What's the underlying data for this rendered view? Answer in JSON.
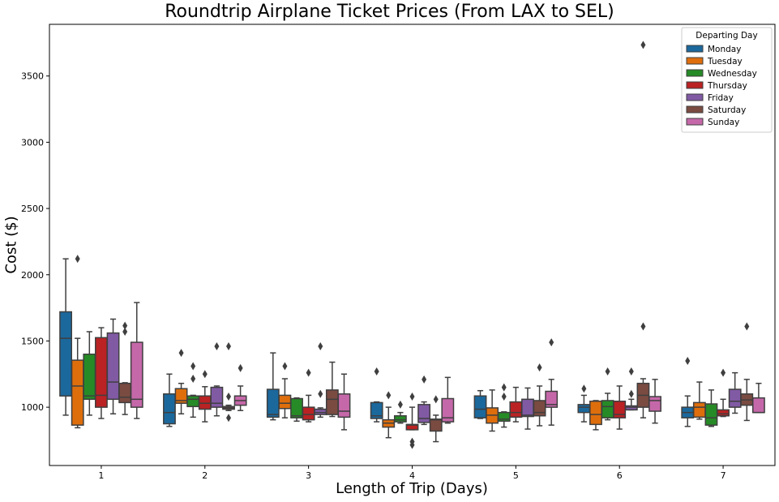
{
  "chart_data": {
    "type": "box",
    "title": "Roundtrip Airplane Ticket Prices (From LAX to SEL)",
    "xlabel": "Length of Trip (Days)",
    "ylabel": "Cost ($)",
    "categories": [
      "1",
      "2",
      "3",
      "4",
      "5",
      "6",
      "7"
    ],
    "ylim": [
      560,
      3890
    ],
    "yticks": [
      1000,
      1500,
      2000,
      2500,
      3000,
      3500
    ],
    "grid": false,
    "legend": {
      "title": "Departing Day",
      "position": "top-right"
    },
    "series": [
      {
        "name": "Monday",
        "color": "#1f77b4",
        "boxes": [
          {
            "whislo": 940,
            "q1": 1085,
            "med": 1520,
            "q3": 1720,
            "whishi": 2120,
            "fliers": []
          },
          {
            "whislo": 855,
            "q1": 875,
            "med": 960,
            "q3": 1100,
            "whishi": 1250,
            "fliers": []
          },
          {
            "whislo": 905,
            "q1": 925,
            "med": 945,
            "q3": 1135,
            "whishi": 1410,
            "fliers": []
          },
          {
            "whislo": 890,
            "q1": 915,
            "med": 935,
            "q3": 1035,
            "whishi": 1040,
            "fliers": [
              1270
            ]
          },
          {
            "whislo": 915,
            "q1": 920,
            "med": 985,
            "q3": 1085,
            "whishi": 1125,
            "fliers": []
          },
          {
            "whislo": 890,
            "q1": 960,
            "med": 1000,
            "q3": 1020,
            "whishi": 1090,
            "fliers": [
              1140
            ]
          },
          {
            "whislo": 855,
            "q1": 920,
            "med": 960,
            "q3": 1000,
            "whishi": 1085,
            "fliers": [
              1350
            ]
          }
        ]
      },
      {
        "name": "Tuesday",
        "color": "#ff7f0e",
        "boxes": [
          {
            "whislo": 845,
            "q1": 865,
            "med": 1160,
            "q3": 1355,
            "whishi": 1520,
            "fliers": [
              2120
            ]
          },
          {
            "whislo": 950,
            "q1": 1030,
            "med": 1050,
            "q3": 1140,
            "whishi": 1180,
            "fliers": [
              1410
            ]
          },
          {
            "whislo": 920,
            "q1": 990,
            "med": 1030,
            "q3": 1090,
            "whishi": 1215,
            "fliers": [
              1310
            ]
          },
          {
            "whislo": 770,
            "q1": 850,
            "med": 880,
            "q3": 905,
            "whishi": 1000,
            "fliers": [
              1090
            ]
          },
          {
            "whislo": 820,
            "q1": 880,
            "med": 940,
            "q3": 995,
            "whishi": 1130,
            "fliers": []
          },
          {
            "whislo": 830,
            "q1": 870,
            "med": 945,
            "q3": 1045,
            "whishi": 1050,
            "fliers": []
          },
          {
            "whislo": 910,
            "q1": 925,
            "med": 1000,
            "q3": 1035,
            "whishi": 1190,
            "fliers": []
          }
        ]
      },
      {
        "name": "Wednesday",
        "color": "#2ca02c",
        "boxes": [
          {
            "whislo": 940,
            "q1": 1060,
            "med": 1085,
            "q3": 1400,
            "whishi": 1570,
            "fliers": []
          },
          {
            "whislo": 925,
            "q1": 1005,
            "med": 1060,
            "q3": 1085,
            "whishi": 1090,
            "fliers": [
              1215,
              1310
            ]
          },
          {
            "whislo": 895,
            "q1": 920,
            "med": 935,
            "q3": 1065,
            "whishi": 1070,
            "fliers": []
          },
          {
            "whislo": 880,
            "q1": 890,
            "med": 905,
            "q3": 935,
            "whishi": 960,
            "fliers": [
              1020
            ]
          },
          {
            "whislo": 850,
            "q1": 895,
            "med": 910,
            "q3": 960,
            "whishi": 965,
            "fliers": [
              1080,
              1150
            ]
          },
          {
            "whislo": 905,
            "q1": 920,
            "med": 1005,
            "q3": 1050,
            "whishi": 1105,
            "fliers": [
              1270
            ]
          },
          {
            "whislo": 855,
            "q1": 865,
            "med": 920,
            "q3": 1025,
            "whishi": 1130,
            "fliers": []
          }
        ]
      },
      {
        "name": "Thursday",
        "color": "#d62728",
        "boxes": [
          {
            "whislo": 915,
            "q1": 1000,
            "med": 1090,
            "q3": 1525,
            "whishi": 1600,
            "fliers": []
          },
          {
            "whislo": 890,
            "q1": 985,
            "med": 1030,
            "q3": 1085,
            "whishi": 1155,
            "fliers": [
              1250
            ]
          },
          {
            "whislo": 890,
            "q1": 905,
            "med": 945,
            "q3": 1000,
            "whishi": 1090,
            "fliers": [
              1260
            ]
          },
          {
            "whislo": 830,
            "q1": 830,
            "med": 865,
            "q3": 870,
            "whishi": 1000,
            "fliers": [
              740,
              715,
              1080
            ]
          },
          {
            "whislo": 890,
            "q1": 925,
            "med": 960,
            "q3": 1040,
            "whishi": 1150,
            "fliers": []
          },
          {
            "whislo": 835,
            "q1": 920,
            "med": 945,
            "q3": 1045,
            "whishi": 1160,
            "fliers": []
          },
          {
            "whislo": 930,
            "q1": 935,
            "med": 950,
            "q3": 980,
            "whishi": 1060,
            "fliers": [
              1260
            ]
          }
        ]
      },
      {
        "name": "Friday",
        "color": "#9467bd",
        "boxes": [
          {
            "whislo": 950,
            "q1": 1060,
            "med": 1190,
            "q3": 1560,
            "whishi": 1665,
            "fliers": []
          },
          {
            "whislo": 935,
            "q1": 1000,
            "med": 1030,
            "q3": 1150,
            "whishi": 1160,
            "fliers": [
              1460
            ]
          },
          {
            "whislo": 925,
            "q1": 945,
            "med": 960,
            "q3": 985,
            "whishi": 995,
            "fliers": [
              1100,
              1460
            ]
          },
          {
            "whislo": 870,
            "q1": 885,
            "med": 915,
            "q3": 1020,
            "whishi": 1040,
            "fliers": [
              1210
            ]
          },
          {
            "whislo": 835,
            "q1": 930,
            "med": 940,
            "q3": 1060,
            "whishi": 1145,
            "fliers": []
          },
          {
            "whislo": 980,
            "q1": 980,
            "med": 1000,
            "q3": 1010,
            "whishi": 1060,
            "fliers": [
              1100,
              1270
            ]
          },
          {
            "whislo": 955,
            "q1": 1000,
            "med": 1045,
            "q3": 1135,
            "whishi": 1260,
            "fliers": []
          }
        ]
      },
      {
        "name": "Saturday",
        "color": "#8c564b",
        "boxes": [
          {
            "whislo": 945,
            "q1": 1035,
            "med": 1075,
            "q3": 1180,
            "whishi": 1185,
            "fliers": [
              1570,
              1615
            ]
          },
          {
            "whislo": 975,
            "q1": 985,
            "med": 995,
            "q3": 1005,
            "whishi": 1015,
            "fliers": [
              920,
              1080,
              1460
            ]
          },
          {
            "whislo": 930,
            "q1": 945,
            "med": 1060,
            "q3": 1130,
            "whishi": 1340,
            "fliers": []
          },
          {
            "whislo": 740,
            "q1": 820,
            "med": 905,
            "q3": 910,
            "whishi": 940,
            "fliers": [
              1060
            ]
          },
          {
            "whislo": 860,
            "q1": 935,
            "med": 960,
            "q3": 1050,
            "whishi": 1160,
            "fliers": [
              1300
            ]
          },
          {
            "whislo": 920,
            "q1": 1000,
            "med": 1090,
            "q3": 1180,
            "whishi": 1215,
            "fliers": [
              1610,
              3735
            ]
          },
          {
            "whislo": 900,
            "q1": 1015,
            "med": 1055,
            "q3": 1100,
            "whishi": 1210,
            "fliers": [
              1610
            ]
          }
        ]
      },
      {
        "name": "Sunday",
        "color": "#e377c2",
        "boxes": [
          {
            "whislo": 915,
            "q1": 1000,
            "med": 1060,
            "q3": 1490,
            "whishi": 1790,
            "fliers": []
          },
          {
            "whislo": 975,
            "q1": 1015,
            "med": 1050,
            "q3": 1085,
            "whishi": 1160,
            "fliers": [
              1295
            ]
          },
          {
            "whislo": 830,
            "q1": 925,
            "med": 970,
            "q3": 1100,
            "whishi": 1250,
            "fliers": []
          },
          {
            "whislo": 880,
            "q1": 890,
            "med": 920,
            "q3": 1065,
            "whishi": 1225,
            "fliers": []
          },
          {
            "whislo": 865,
            "q1": 1000,
            "med": 1020,
            "q3": 1120,
            "whishi": 1210,
            "fliers": [
              1490
            ]
          },
          {
            "whislo": 880,
            "q1": 970,
            "med": 1050,
            "q3": 1080,
            "whishi": 1210,
            "fliers": []
          },
          {
            "whislo": 960,
            "q1": 960,
            "med": 960,
            "q3": 1070,
            "whishi": 1180,
            "fliers": []
          }
        ]
      }
    ]
  }
}
